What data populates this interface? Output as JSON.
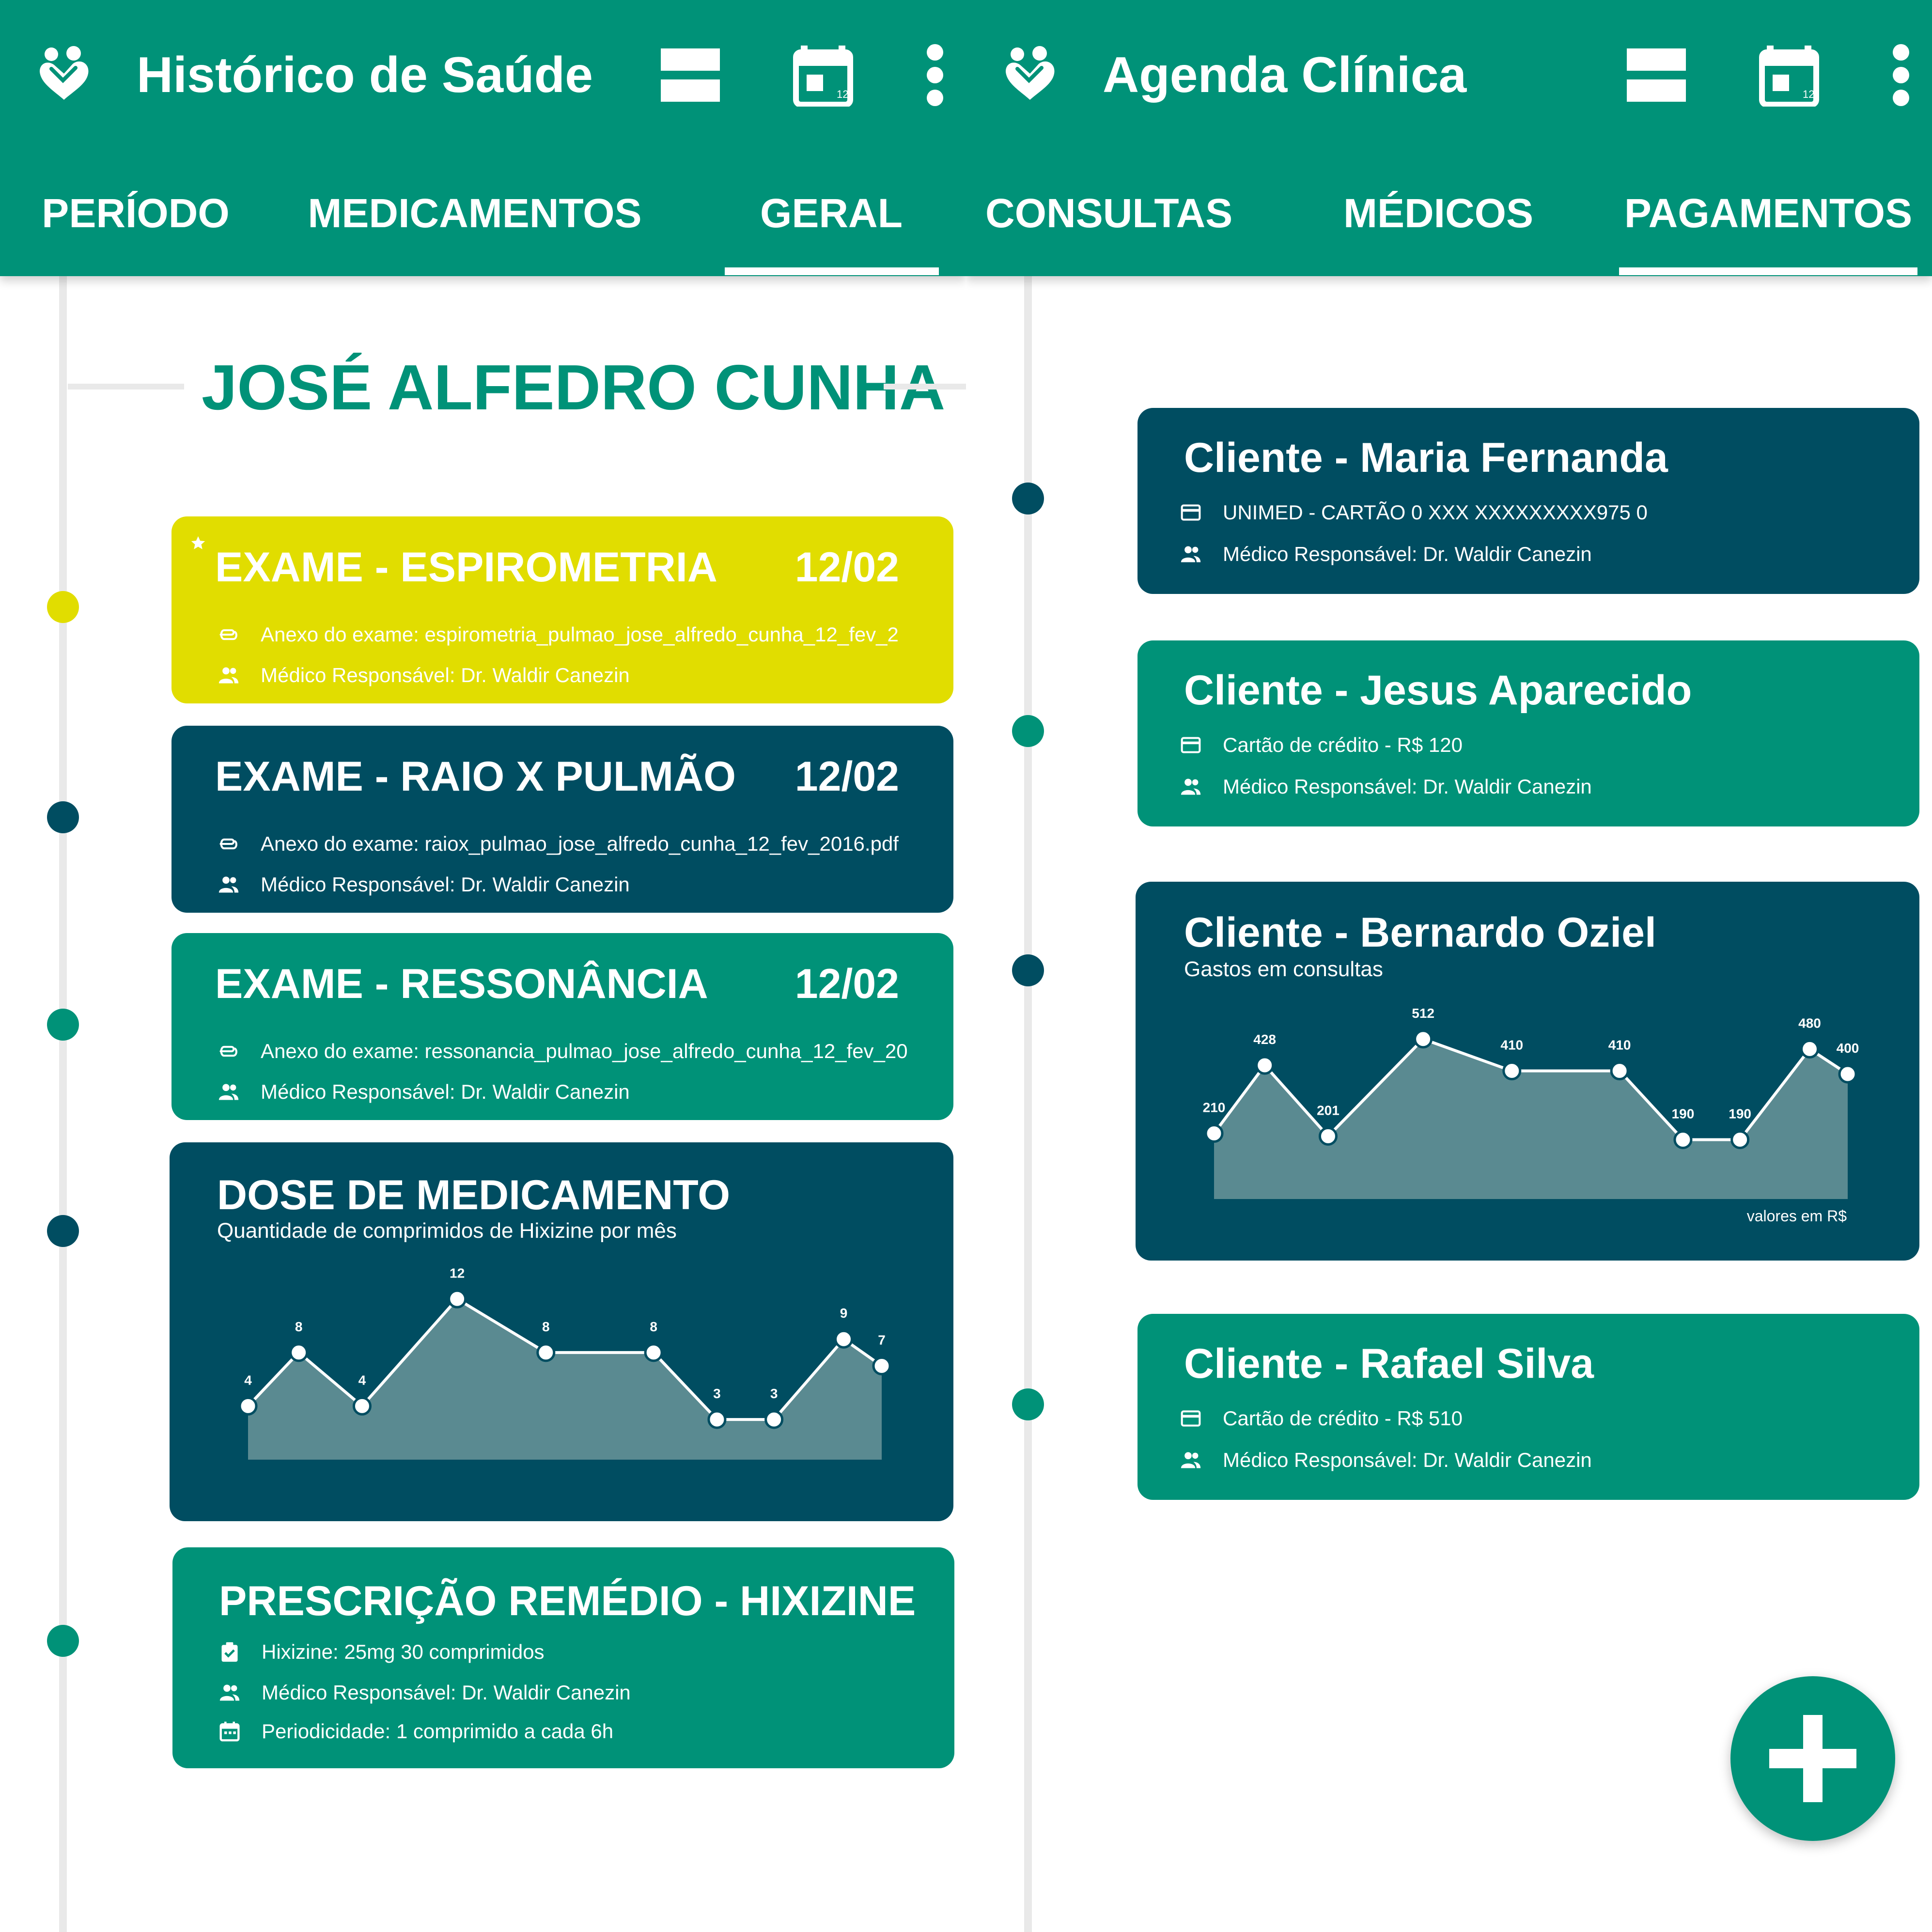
{
  "colors": {
    "primary": "#009278",
    "dark": "#004d61",
    "yellow": "#e1dd00",
    "chart_fill": "#5a8a91",
    "timeline_line": "#e9e9e9"
  },
  "left": {
    "title": "Histórico de Saúde",
    "icons": [
      "heart-hands-logo-icon",
      "view-stream-icon",
      "calendar-icon",
      "more-vert-icon"
    ],
    "calendar_day": "12",
    "tabs": [
      {
        "label": "PERÍODO",
        "active": false
      },
      {
        "label": "MEDICAMENTOS",
        "active": false
      },
      {
        "label": "GERAL",
        "active": true
      }
    ],
    "patient_name": "JOSÉ ALFEDRO CUNHA",
    "cards": [
      {
        "title": "EXAME - ESPIROMETRIA",
        "date": "12/02",
        "color": "yellow",
        "starred": true,
        "attachment": "Anexo do exame: espirometria_pulmao_jose_alfredo_cunha_12_fev_2",
        "doctor": "Médico Responsável: Dr. Waldir Canezin"
      },
      {
        "title": "EXAME - RAIO X PULMÃO",
        "date": "12/02",
        "color": "dark",
        "starred": false,
        "attachment": "Anexo do exame: raiox_pulmao_jose_alfredo_cunha_12_fev_2016.pdf",
        "doctor": "Médico Responsável: Dr. Waldir Canezin"
      },
      {
        "title": "EXAME - RESSONÂNCIA",
        "date": "12/02",
        "color": "primary",
        "starred": false,
        "attachment": "Anexo do exame: ressonancia_pulmao_jose_alfredo_cunha_12_fev_20",
        "doctor": "Médico Responsável: Dr. Waldir Canezin"
      }
    ],
    "dose_card": {
      "title": "DOSE DE MEDICAMENTO",
      "subtitle": "Quantidade de comprimidos de Hixizine por mês"
    },
    "prescription": {
      "title": "PRESCRIÇÃO REMÉDIO - HIXIZINE",
      "medication": "Hixizine: 25mg 30 comprimidos",
      "doctor": "Médico Responsável: Dr. Waldir Canezin",
      "periodicity": "Periodicidade: 1 comprimido a cada 6h"
    }
  },
  "right": {
    "title": "Agenda Clínica",
    "icons": [
      "heart-hands-logo-icon",
      "view-stream-icon",
      "calendar-icon",
      "more-vert-icon"
    ],
    "calendar_day": "12",
    "tabs": [
      {
        "label": "CONSULTAS",
        "active": false
      },
      {
        "label": "MÉDICOS",
        "active": false
      },
      {
        "label": "PAGAMENTOS",
        "active": true
      }
    ],
    "clients": [
      {
        "title": "Cliente - Maria Fernanda",
        "color": "dark",
        "payment": "UNIMED - CARTÃO 0 XXX XXXXXXXXX975 0",
        "doctor": "Médico Responsável: Dr. Waldir Canezin"
      },
      {
        "title": "Cliente - Jesus Aparecido",
        "color": "primary",
        "payment": "Cartão de crédito - R$ 120",
        "doctor": "Médico Responsável: Dr. Waldir Canezin"
      },
      {
        "title": "Cliente - Rafael Silva",
        "color": "primary",
        "payment": "Cartão de crédito - R$ 510",
        "doctor": "Médico Responsável: Dr. Waldir Canezin"
      }
    ],
    "chart_card": {
      "title": "Cliente - Bernardo Oziel",
      "subtitle": "Gastos em consultas",
      "unit_note": "valores em R$"
    },
    "fab_icon": "plus-icon"
  },
  "chart_data": [
    {
      "type": "area",
      "title": "DOSE DE MEDICAMENTO",
      "subtitle": "Quantidade de comprimidos de Hixizine por mês",
      "values": [
        4,
        8,
        4,
        12,
        8,
        8,
        3,
        3,
        9,
        7
      ],
      "x_relative": [
        0,
        0.08,
        0.18,
        0.33,
        0.47,
        0.64,
        0.74,
        0.83,
        0.94,
        1.0
      ],
      "ylim": [
        0,
        14
      ],
      "data_labels": true,
      "grid": false,
      "legend": "none"
    },
    {
      "type": "area",
      "title": "Cliente - Bernardo Oziel",
      "subtitle": "Gastos em consultas",
      "unit_note": "valores em R$",
      "values": [
        210,
        428,
        201,
        512,
        410,
        410,
        190,
        190,
        480,
        400
      ],
      "x_relative": [
        0,
        0.08,
        0.18,
        0.33,
        0.47,
        0.64,
        0.74,
        0.83,
        0.94,
        1.0
      ],
      "ylim": [
        0,
        600
      ],
      "data_labels": true,
      "grid": false,
      "legend": "none"
    }
  ]
}
